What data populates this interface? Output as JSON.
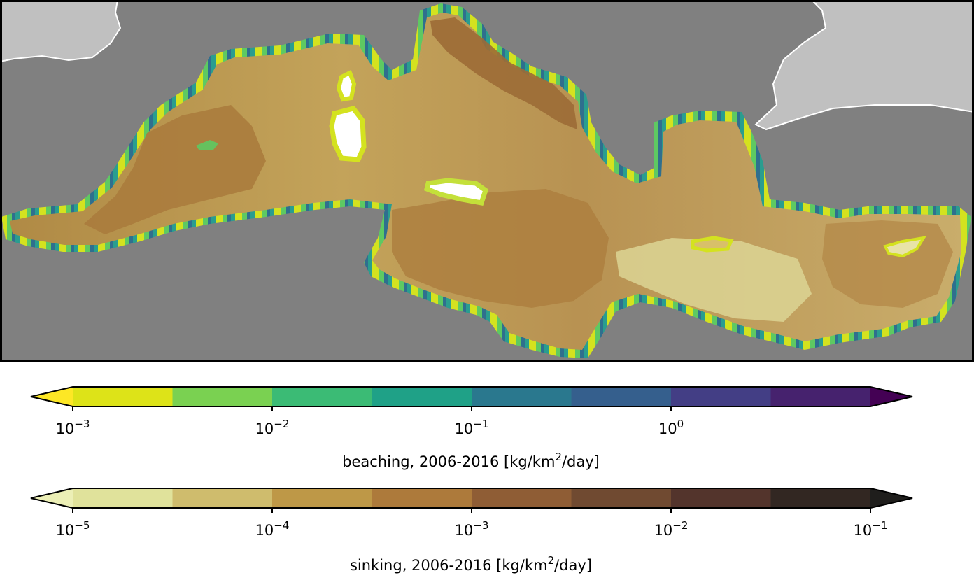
{
  "map": {
    "colors": {
      "ocean_outside": "#808080",
      "land": "#c0c0c0",
      "coast_line": "#ffffff",
      "frame": "#000000"
    }
  },
  "colorbars": [
    {
      "id": "beaching",
      "label_prefix": "beaching, 2006-2016 [kg/km",
      "label_exp": "2",
      "label_suffix": "/day]",
      "colors": [
        "#dde318",
        "#7ad151",
        "#3bbb75",
        "#1fa187",
        "#2a788e",
        "#355f8d",
        "#433e85",
        "#46226e"
      ],
      "extend_low_color": "#fde725",
      "extend_high_color": "#440154",
      "ticks": [
        {
          "base": "10",
          "exp": "−3"
        },
        {
          "base": "10",
          "exp": "−2"
        },
        {
          "base": "10",
          "exp": "−1"
        },
        {
          "base": "10",
          "exp": "0"
        }
      ],
      "tick_values": [
        0.001,
        0.01,
        0.1,
        1
      ]
    },
    {
      "id": "sinking",
      "label_prefix": "sinking, 2006-2016 [kg/km",
      "label_exp": "2",
      "label_suffix": "/day]",
      "colors": [
        "#e0e29b",
        "#cfbc6d",
        "#be9847",
        "#ad7a3b",
        "#8f5d35",
        "#704a31",
        "#53342c",
        "#322722"
      ],
      "extend_low_color": "#ecefb6",
      "extend_high_color": "#1f1e1c",
      "ticks": [
        {
          "base": "10",
          "exp": "−5"
        },
        {
          "base": "10",
          "exp": "−4"
        },
        {
          "base": "10",
          "exp": "−3"
        },
        {
          "base": "10",
          "exp": "−2"
        },
        {
          "base": "10",
          "exp": "−1"
        }
      ],
      "tick_values": [
        1e-05,
        0.0001,
        0.001,
        0.01,
        0.1
      ]
    }
  ]
}
